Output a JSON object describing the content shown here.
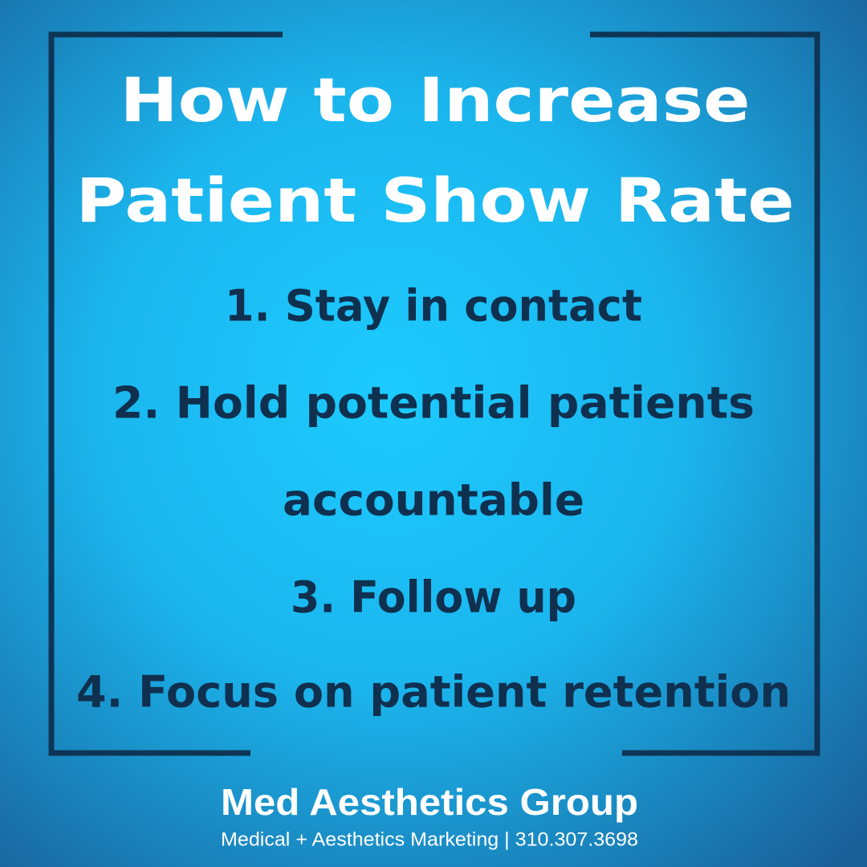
{
  "title": [
    "How to Increase",
    "Patient Show Rate"
  ],
  "items": [
    [
      "1. Stay in contact"
    ],
    [
      "2. Hold potential patients",
      "accountable"
    ],
    [
      "3. Follow up"
    ],
    [
      "4. Focus on patient retention"
    ]
  ],
  "footer": {
    "brand": "Med Aesthetics Group",
    "tagline": "Medical + Aesthetics Marketing | 310.307.3698"
  }
}
